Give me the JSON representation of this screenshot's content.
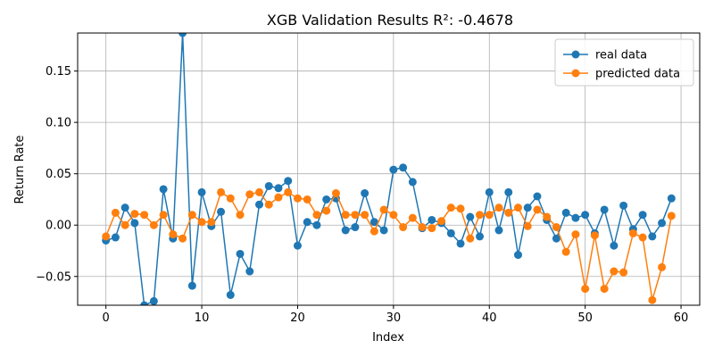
{
  "chart_data": {
    "type": "line",
    "title": "XGB Validation Results R²: -0.4678",
    "xlabel": "Index",
    "ylabel": "Return Rate",
    "xlim": [
      -2.95,
      61.95
    ],
    "ylim": [
      -0.078,
      0.187
    ],
    "xticks": [
      0,
      10,
      20,
      30,
      40,
      50,
      60
    ],
    "yticks": [
      -0.05,
      0.0,
      0.05,
      0.1,
      0.15
    ],
    "ytick_labels": [
      "−0.05",
      "0.00",
      "0.05",
      "0.10",
      "0.15"
    ],
    "grid": true,
    "legend_position": "top-right",
    "x": [
      0,
      1,
      2,
      3,
      4,
      5,
      6,
      7,
      8,
      9,
      10,
      11,
      12,
      13,
      14,
      15,
      16,
      17,
      18,
      19,
      20,
      21,
      22,
      23,
      24,
      25,
      26,
      27,
      28,
      29,
      30,
      31,
      32,
      33,
      34,
      35,
      36,
      37,
      38,
      39,
      40,
      41,
      42,
      43,
      44,
      45,
      46,
      47,
      48,
      49,
      50,
      51,
      52,
      53,
      54,
      55,
      56,
      57,
      58,
      59
    ],
    "series": [
      {
        "name": "real data",
        "color": "#1f77b4",
        "values": [
          -0.015,
          -0.012,
          0.017,
          0.002,
          -0.078,
          -0.074,
          0.035,
          -0.013,
          0.187,
          -0.059,
          0.032,
          -0.001,
          0.013,
          -0.068,
          -0.028,
          -0.045,
          0.02,
          0.038,
          0.036,
          0.043,
          -0.02,
          0.003,
          0.0,
          0.025,
          0.026,
          -0.005,
          -0.002,
          0.031,
          0.003,
          -0.005,
          0.054,
          0.056,
          0.042,
          -0.003,
          0.005,
          0.002,
          -0.008,
          -0.018,
          0.008,
          -0.011,
          0.032,
          -0.005,
          0.032,
          -0.029,
          0.017,
          0.028,
          0.005,
          -0.013,
          0.012,
          0.007,
          0.01,
          -0.008,
          0.015,
          -0.02,
          0.019,
          -0.004,
          0.01,
          -0.011,
          0.002,
          0.026
        ]
      },
      {
        "name": "predicted data",
        "color": "#ff7f0e",
        "values": [
          -0.011,
          0.012,
          0.0,
          0.011,
          0.01,
          0.0,
          0.01,
          -0.009,
          -0.013,
          0.01,
          0.003,
          0.003,
          0.032,
          0.026,
          0.01,
          0.03,
          0.032,
          0.02,
          0.027,
          0.032,
          0.026,
          0.025,
          0.01,
          0.014,
          0.031,
          0.01,
          0.01,
          0.01,
          -0.006,
          0.015,
          0.01,
          -0.002,
          0.007,
          -0.002,
          -0.003,
          0.004,
          0.017,
          0.016,
          -0.013,
          0.01,
          0.01,
          0.017,
          0.012,
          0.017,
          -0.001,
          0.015,
          0.008,
          -0.002,
          -0.026,
          -0.009,
          -0.062,
          -0.01,
          -0.062,
          -0.045,
          -0.046,
          -0.008,
          -0.012,
          -0.073,
          -0.041,
          0.009
        ]
      }
    ]
  }
}
